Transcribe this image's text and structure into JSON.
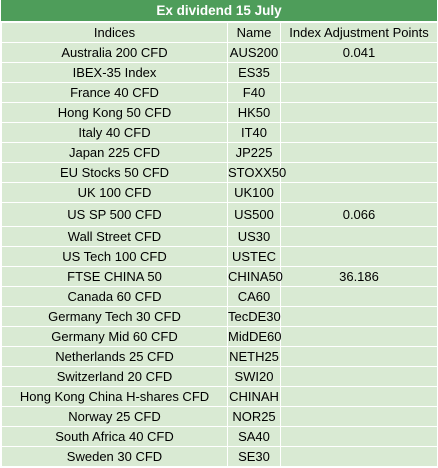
{
  "title": "Ex dividend 15 July",
  "columns": [
    "Indices",
    "Name",
    "Index Adjustment Points"
  ],
  "rows": [
    {
      "index": "Australia 200 CFD",
      "name": "AUS200",
      "points": "0.041"
    },
    {
      "index": "IBEX-35 Index",
      "name": "ES35",
      "points": ""
    },
    {
      "index": "France 40 CFD",
      "name": "F40",
      "points": ""
    },
    {
      "index": "Hong Kong 50 CFD",
      "name": "HK50",
      "points": ""
    },
    {
      "index": "Italy 40 CFD",
      "name": "IT40",
      "points": ""
    },
    {
      "index": "Japan 225 CFD",
      "name": "JP225",
      "points": ""
    },
    {
      "index": "EU Stocks 50 CFD",
      "name": "STOXX50",
      "points": ""
    },
    {
      "index": "UK 100 CFD",
      "name": "UK100",
      "points": ""
    },
    {
      "index": "US SP 500 CFD",
      "name": "US500",
      "points": "0.066"
    },
    {
      "index": "Wall Street CFD",
      "name": "US30",
      "points": ""
    },
    {
      "index": "US Tech 100 CFD",
      "name": "USTEC",
      "points": ""
    },
    {
      "index": "FTSE CHINA 50",
      "name": "CHINA50",
      "points": "36.186"
    },
    {
      "index": "Canada 60 CFD",
      "name": "CA60",
      "points": ""
    },
    {
      "index": "Germany Tech 30 CFD",
      "name": "TecDE30",
      "points": ""
    },
    {
      "index": "Germany Mid 60 CFD",
      "name": "MidDE60",
      "points": ""
    },
    {
      "index": "Netherlands 25 CFD",
      "name": "NETH25",
      "points": ""
    },
    {
      "index": "Switzerland 20 CFD",
      "name": "SWI20",
      "points": ""
    },
    {
      "index": "Hong Kong China H-shares CFD",
      "name": "CHINAH",
      "points": ""
    },
    {
      "index": "Norway 25 CFD",
      "name": "NOR25",
      "points": ""
    },
    {
      "index": "South Africa 40 CFD",
      "name": "SA40",
      "points": ""
    },
    {
      "index": "Sweden 30 CFD",
      "name": "SE30",
      "points": ""
    }
  ],
  "colors": {
    "title_background": "#4e9d5a",
    "cell_background": "#d9ead3"
  }
}
